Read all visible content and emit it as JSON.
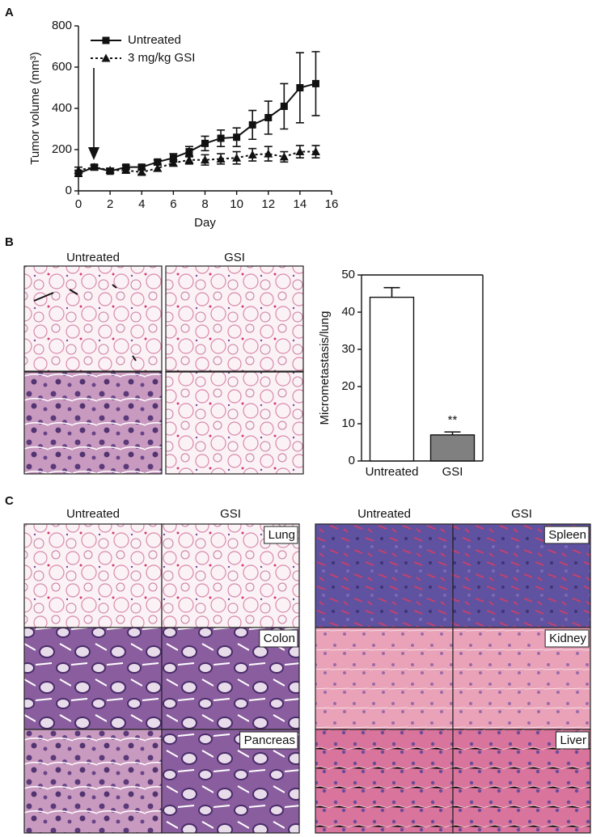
{
  "chart_data": [
    {
      "type": "line",
      "ylabel": "Tumor volume (mm³)",
      "xlabel": "Day",
      "x": [
        0,
        1,
        2,
        3,
        4,
        5,
        6,
        7,
        8,
        9,
        10,
        11,
        12,
        13,
        14,
        15
      ],
      "xlim": [
        0,
        16
      ],
      "xticks": [
        0,
        2,
        4,
        6,
        8,
        10,
        12,
        14,
        16
      ],
      "ylim": [
        0,
        800
      ],
      "yticks": [
        0,
        200,
        400,
        600,
        800
      ],
      "legend": "upper left",
      "series": [
        {
          "name": "Untreated",
          "color": "#111111",
          "marker": "square",
          "linestyle": "solid",
          "values": [
            85,
            115,
            95,
            115,
            115,
            140,
            160,
            190,
            230,
            255,
            260,
            320,
            355,
            410,
            500,
            520
          ],
          "errors": [
            15,
            10,
            10,
            10,
            10,
            10,
            20,
            25,
            35,
            40,
            45,
            70,
            80,
            110,
            170,
            155
          ]
        },
        {
          "name": "3 mg/kg GSI",
          "color": "#111111",
          "marker": "triangle",
          "linestyle": "dotted",
          "values": [
            100,
            115,
            100,
            100,
            90,
            110,
            135,
            150,
            150,
            155,
            160,
            175,
            180,
            165,
            190,
            190
          ],
          "errors": [
            15,
            10,
            10,
            10,
            10,
            15,
            15,
            20,
            25,
            25,
            30,
            30,
            35,
            25,
            30,
            30
          ]
        }
      ]
    },
    {
      "type": "bar",
      "ylabel": "Micrometastasis/lung",
      "categories": [
        "Untreated",
        "GSI"
      ],
      "values": [
        44,
        7
      ],
      "errors": [
        2.6,
        0.8
      ],
      "colors": [
        "#ffffff",
        "#808080"
      ],
      "annotation": "**",
      "ylim": [
        0,
        50
      ],
      "yticks": [
        0,
        10,
        20,
        30,
        40,
        50
      ]
    }
  ],
  "figure": {
    "panel_labels": [
      "A",
      "B",
      "C"
    ],
    "b_headers": [
      "Untreated",
      "GSI"
    ],
    "c_left_headers": [
      "Untreated",
      "GSI"
    ],
    "c_right_headers": [
      "Untreated",
      "GSI"
    ],
    "tissue_labels": [
      "Lung",
      "Colon",
      "Pancreas",
      "Spleen",
      "Kidney",
      "Liver"
    ]
  }
}
